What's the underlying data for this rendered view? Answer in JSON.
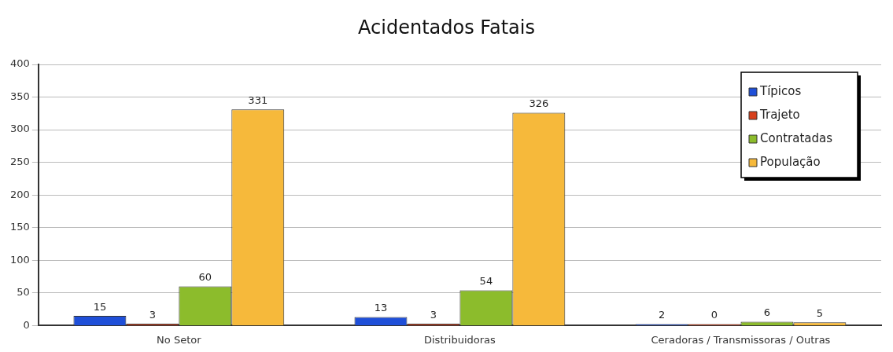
{
  "chart_data": {
    "type": "bar",
    "title": "Acidentados Fatais",
    "categories": [
      "No Setor",
      "Distribuidoras",
      "Ceradoras / Transmissoras / Outras"
    ],
    "series": [
      {
        "name": "Típicos",
        "color": "#1f4fd8",
        "values": [
          15,
          13,
          2
        ]
      },
      {
        "name": "Trajeto",
        "color": "#d8401c",
        "values": [
          3,
          3,
          0
        ]
      },
      {
        "name": "Contratadas",
        "color": "#8cbc2c",
        "values": [
          60,
          54,
          6
        ]
      },
      {
        "name": "População",
        "color": "#f6b93b",
        "values": [
          331,
          326,
          5
        ]
      }
    ],
    "ylim": [
      0,
      400
    ],
    "yticks": [
      0,
      50,
      100,
      150,
      200,
      250,
      300,
      350,
      400
    ],
    "grid": "y",
    "legend": "top right",
    "data_labels": true
  }
}
